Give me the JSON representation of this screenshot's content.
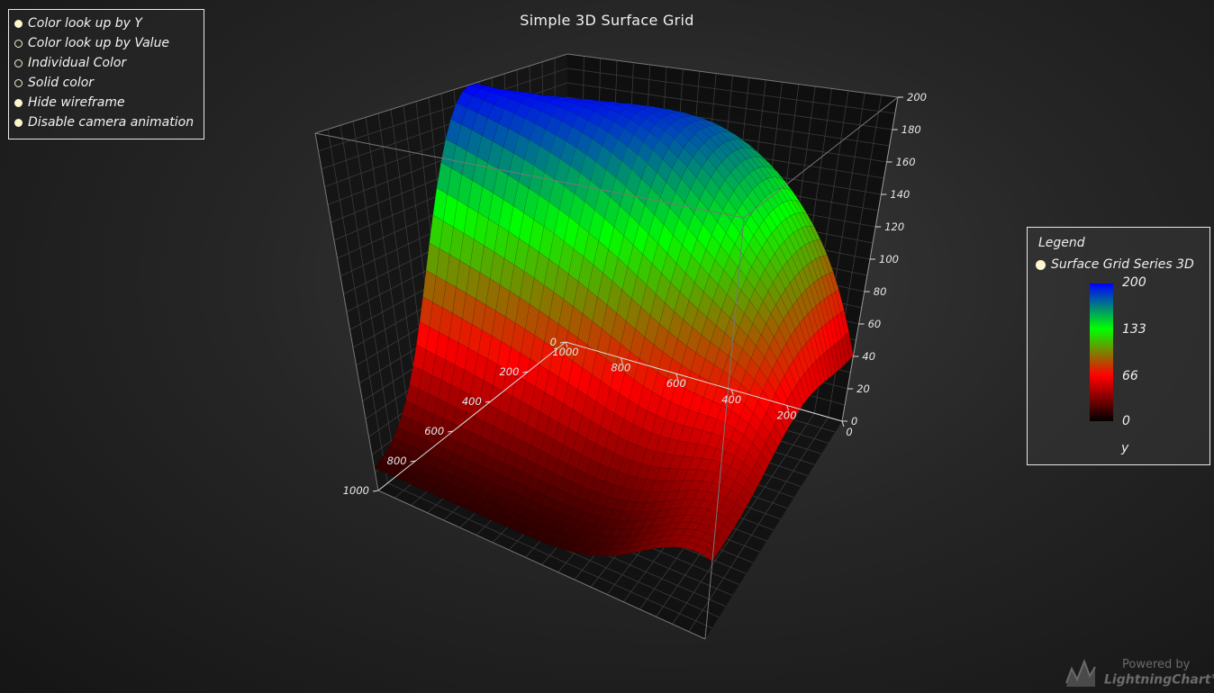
{
  "chart_data": {
    "type": "surface",
    "title": "Simple 3D Surface Grid",
    "x_axis": {
      "range": [
        0,
        1000
      ],
      "ticks": [
        "0",
        "200",
        "400",
        "600",
        "800",
        "1000"
      ]
    },
    "y_axis": {
      "range": [
        0,
        200
      ],
      "ticks": [
        "0",
        "20",
        "40",
        "60",
        "80",
        "100",
        "120",
        "140",
        "160",
        "180",
        "200"
      ]
    },
    "z_axis": {
      "range": [
        0,
        1000
      ],
      "ticks": [
        "0",
        "200",
        "400",
        "600",
        "800",
        "1000"
      ]
    },
    "series": [
      {
        "name": "Surface Grid Series 3D",
        "grid": "50x50"
      }
    ],
    "color_scale": {
      "stops": [
        {
          "value": 0,
          "color": "#000000"
        },
        {
          "value": 66,
          "color": "#ff0000"
        },
        {
          "value": 133,
          "color": "#00ff00"
        },
        {
          "value": 200,
          "color": "#0000ff"
        }
      ],
      "labels": [
        "200",
        "133",
        "66",
        "0"
      ],
      "unit": "y"
    },
    "grid": true,
    "legend_placement": "right"
  },
  "options": [
    {
      "label": "Color look up by Y",
      "selected": true
    },
    {
      "label": "Color look up by Value",
      "selected": false
    },
    {
      "label": "Individual Color",
      "selected": false
    },
    {
      "label": "Solid color",
      "selected": false
    },
    {
      "label": "Hide wireframe",
      "selected": true
    },
    {
      "label": "Disable camera animation",
      "selected": true
    }
  ],
  "legend": {
    "title": "Legend",
    "entry": "Surface Grid Series 3D"
  },
  "branding": {
    "powered": "Powered by",
    "name": "LightningChart",
    "mark": "®"
  }
}
